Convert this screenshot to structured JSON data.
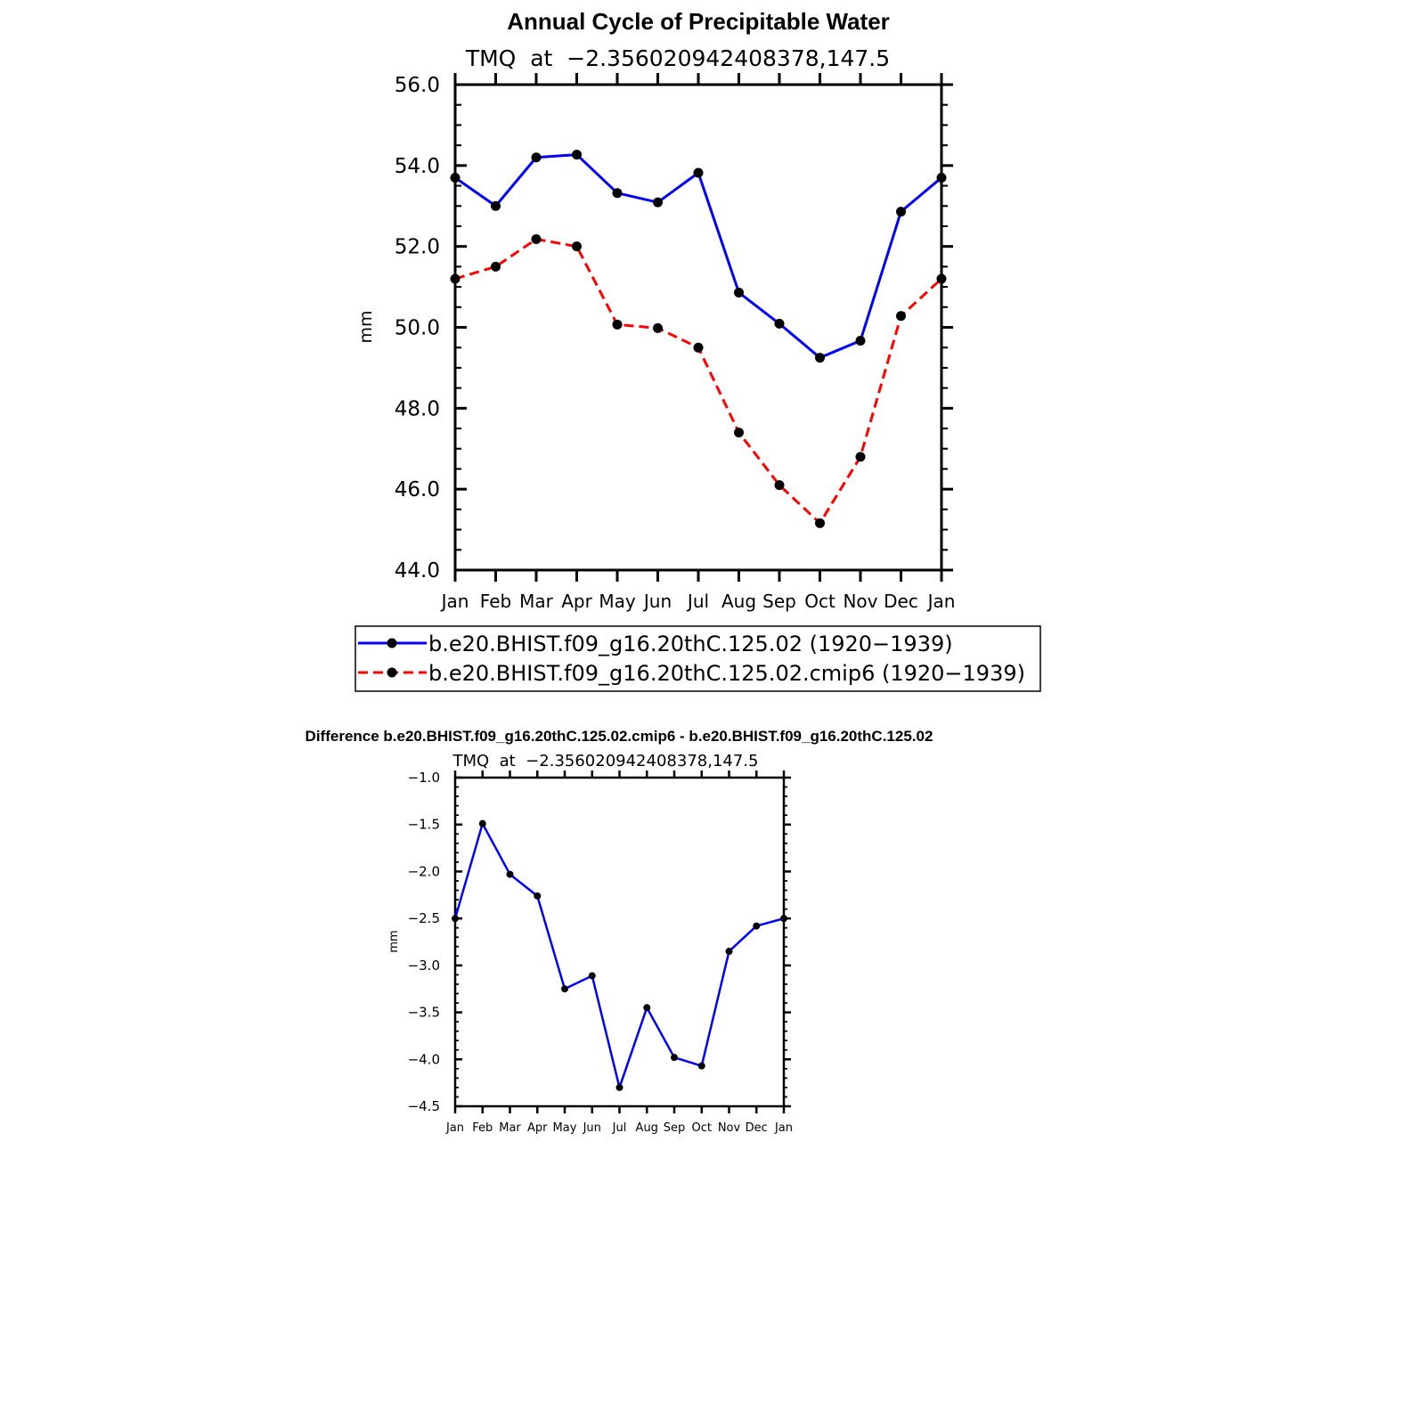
{
  "chart_data": [
    {
      "type": "line",
      "title": "Annual Cycle of Precipitable Water",
      "subtitle": "TMQ  at  −2.356020942408378,147.5",
      "xlabel": "",
      "ylabel": "mm",
      "categories": [
        "Jan",
        "Feb",
        "Mar",
        "Apr",
        "May",
        "Jun",
        "Jul",
        "Aug",
        "Sep",
        "Oct",
        "Nov",
        "Dec",
        "Jan"
      ],
      "ylim": [
        44.0,
        56.0
      ],
      "yticks": [
        "44.0",
        "46.0",
        "48.0",
        "50.0",
        "52.0",
        "54.0",
        "56.0"
      ],
      "grid": false,
      "legend_position": "bottom",
      "series": [
        {
          "name": "b.e20.BHIST.f09_g16.20thC.125.02 (1920−1939)",
          "color": "#0000ff",
          "line_style": "solid",
          "marker": "filled-circle",
          "values": [
            53.7,
            53.0,
            54.2,
            54.27,
            53.32,
            53.09,
            53.82,
            50.86,
            50.09,
            49.25,
            49.67,
            52.86,
            53.7
          ]
        },
        {
          "name": "b.e20.BHIST.f09_g16.20thC.125.02.cmip6 (1920−1939)",
          "color": "#ff0000",
          "line_style": "dashed",
          "marker": "filled-circle",
          "values": [
            51.2,
            51.5,
            52.18,
            52.0,
            50.07,
            49.98,
            49.5,
            47.4,
            46.1,
            45.16,
            46.8,
            50.28,
            51.2
          ]
        }
      ]
    },
    {
      "type": "line",
      "title": "Difference b.e20.BHIST.f09_g16.20thC.125.02.cmip6 - b.e20.BHIST.f09_g16.20thC.125.02",
      "subtitle": "TMQ  at  −2.356020942408378,147.5",
      "xlabel": "",
      "ylabel": "mm",
      "categories": [
        "Jan",
        "Feb",
        "Mar",
        "Apr",
        "May",
        "Jun",
        "Jul",
        "Aug",
        "Sep",
        "Oct",
        "Nov",
        "Dec",
        "Jan"
      ],
      "ylim": [
        -4.5,
        -1.0
      ],
      "yticks": [
        "−4.5",
        "−4.0",
        "−3.5",
        "−3.0",
        "−2.5",
        "−2.0",
        "−1.5",
        "−1.0"
      ],
      "grid": false,
      "series": [
        {
          "color": "#0000ff",
          "line_style": "solid",
          "marker": "filled-circle",
          "values": [
            -2.5,
            -1.49,
            -2.03,
            -2.26,
            -3.25,
            -3.11,
            -4.3,
            -3.45,
            -3.98,
            -4.07,
            -2.85,
            -2.58,
            -2.5
          ]
        }
      ]
    }
  ]
}
